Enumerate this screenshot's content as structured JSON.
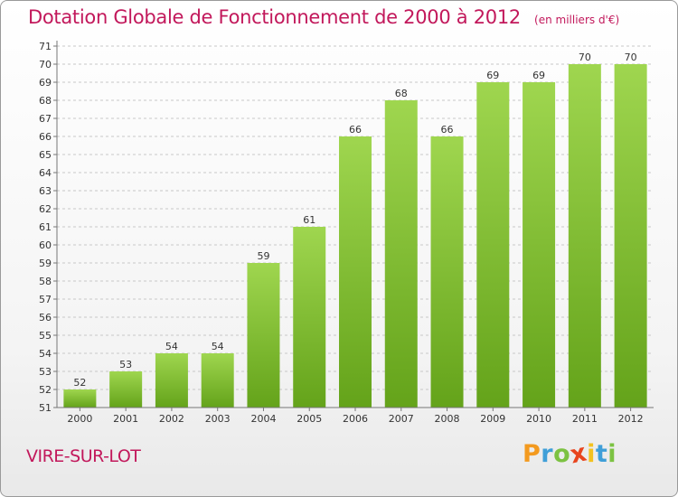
{
  "title": "Dotation Globale de Fonctionnement de 2000 à 2012",
  "unit_label": "(en milliers d'€)",
  "commune": "VIRE-SUR-LOT",
  "brand": {
    "letters": [
      "P",
      "r",
      "o",
      "x",
      "i",
      "t",
      "i"
    ],
    "colors": [
      "#f39a1f",
      "#3f9fd8",
      "#7cc242",
      "#e8451e",
      "#f3c21f",
      "#3f9fd8",
      "#7cc242"
    ]
  },
  "colors": {
    "bar_light": "#9fd64f",
    "bar_dark": "#64a31a",
    "grid": "#c8c8c8",
    "axis": "#777777",
    "title": "#c2185b"
  },
  "chart_data": {
    "type": "bar",
    "categories": [
      "2000",
      "2001",
      "2002",
      "2003",
      "2004",
      "2005",
      "2006",
      "2007",
      "2008",
      "2009",
      "2010",
      "2011",
      "2012"
    ],
    "values": [
      52,
      53,
      54,
      54,
      59,
      61,
      66,
      68,
      66,
      69,
      69,
      70,
      70
    ],
    "title": "Dotation Globale de Fonctionnement de 2000 à 2012",
    "xlabel": "",
    "ylabel": "(en milliers d'€)",
    "ylim": [
      51,
      71
    ],
    "yticks": [
      51,
      52,
      53,
      54,
      55,
      56,
      57,
      58,
      59,
      60,
      61,
      62,
      63,
      64,
      65,
      66,
      67,
      68,
      69,
      70,
      71
    ],
    "grid": "horizontal-dashed",
    "legend": "none"
  }
}
